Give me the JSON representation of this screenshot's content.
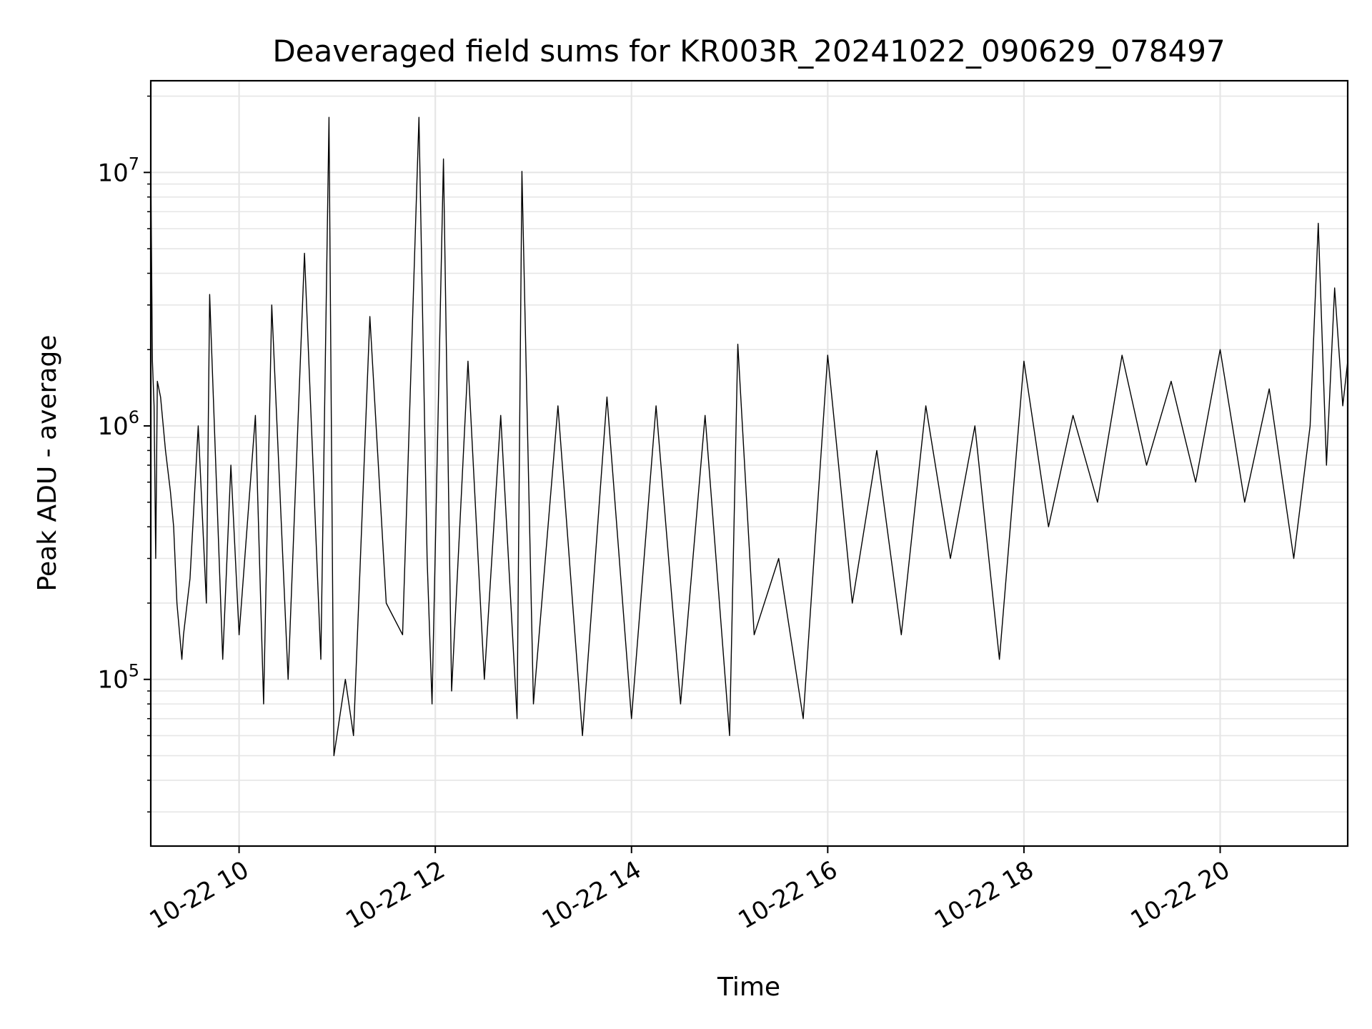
{
  "chart_data": {
    "type": "line",
    "title": "Deaveraged field sums for KR003R_20241022_090629_078497",
    "xlabel": "Time",
    "ylabel": "Peak ADU - average",
    "xlim": [
      "10-22 09:06",
      "10-22 21:18"
    ],
    "ylim": [
      22000,
      23000000
    ],
    "yscale": "log",
    "grid": true,
    "xticks": [
      "10-22 10",
      "10-22 12",
      "10-22 14",
      "10-22 16",
      "10-22 18",
      "10-22 20"
    ],
    "yticks": [
      {
        "base": "10",
        "exp": "5",
        "value": 100000
      },
      {
        "base": "10",
        "exp": "6",
        "value": 1000000
      },
      {
        "base": "10",
        "exp": "7",
        "value": 10000000
      }
    ],
    "line_color": "#000000",
    "grid_color": "#e6e6e6",
    "series": [
      {
        "x": [
          "10-22 09:06",
          "10-22 09:07",
          "10-22 09:08",
          "10-22 09:09",
          "10-22 09:10",
          "10-22 09:12",
          "10-22 09:15",
          "10-22 09:18",
          "10-22 09:20",
          "10-22 09:22",
          "10-22 09:25",
          "10-22 09:26",
          "10-22 09:30",
          "10-22 09:35",
          "10-22 09:40",
          "10-22 09:42",
          "10-22 09:50",
          "10-22 09:55",
          "10-22 10:00",
          "10-22 10:10",
          "10-22 10:15",
          "10-22 10:20",
          "10-22 10:30",
          "10-22 10:40",
          "10-22 10:50",
          "10-22 10:55",
          "10-22 10:58",
          "10-22 11:05",
          "10-22 11:10",
          "10-22 11:20",
          "10-22 11:30",
          "10-22 11:40",
          "10-22 11:50",
          "10-22 11:55",
          "10-22 11:58",
          "10-22 12:05",
          "10-22 12:10",
          "10-22 12:20",
          "10-22 12:30",
          "10-22 12:40",
          "10-22 12:50",
          "10-22 12:53",
          "10-22 13:00",
          "10-22 13:15",
          "10-22 13:30",
          "10-22 13:45",
          "10-22 14:00",
          "10-22 14:15",
          "10-22 14:30",
          "10-22 14:45",
          "10-22 15:00",
          "10-22 15:05",
          "10-22 15:15",
          "10-22 15:30",
          "10-22 15:45",
          "10-22 16:00",
          "10-22 16:15",
          "10-22 16:30",
          "10-22 16:45",
          "10-22 17:00",
          "10-22 17:15",
          "10-22 17:30",
          "10-22 17:45",
          "10-22 18:00",
          "10-22 18:15",
          "10-22 18:30",
          "10-22 18:45",
          "10-22 19:00",
          "10-22 19:15",
          "10-22 19:30",
          "10-22 19:45",
          "10-22 20:00",
          "10-22 20:15",
          "10-22 20:30",
          "10-22 20:45",
          "10-22 20:55",
          "10-22 21:00",
          "10-22 21:05",
          "10-22 21:10",
          "10-22 21:15",
          "10-22 21:18"
        ],
        "y": [
          10500000,
          1800000,
          1200000,
          300000,
          1500000,
          1300000,
          800000,
          550000,
          400000,
          200000,
          120000,
          150000,
          250000,
          1000000,
          200000,
          3300000,
          120000,
          700000,
          150000,
          1100000,
          80000,
          3000000,
          100000,
          4800000,
          120000,
          16500000,
          50000,
          100000,
          60000,
          2700000,
          200000,
          150000,
          16500000,
          300000,
          80000,
          11300000,
          90000,
          1800000,
          100000,
          1100000,
          70000,
          10100000,
          80000,
          1200000,
          60000,
          1300000,
          70000,
          1200000,
          80000,
          1100000,
          60000,
          2100000,
          150000,
          300000,
          70000,
          1900000,
          200000,
          800000,
          150000,
          1200000,
          300000,
          1000000,
          120000,
          1800000,
          400000,
          1100000,
          500000,
          1900000,
          700000,
          1500000,
          600000,
          2000000,
          500000,
          1400000,
          300000,
          1000000,
          6300000,
          700000,
          3500000,
          1200000,
          1800000
        ]
      }
    ]
  }
}
